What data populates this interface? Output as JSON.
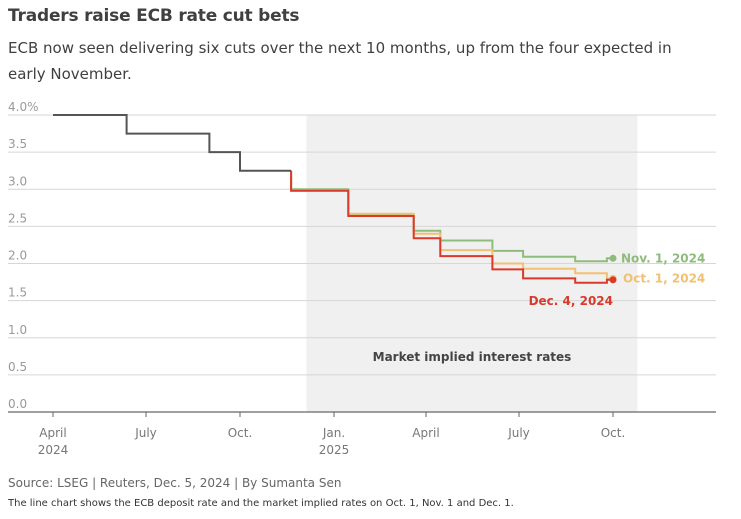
{
  "title": "Traders raise ECB rate cut bets",
  "subtitle": "ECB now seen delivering six cuts over the next 10 months, up from the four expected in early November.",
  "source": "Source: LSEG | Reuters, Dec. 5, 2024 | By Sumanta Sen",
  "note": "The line chart shows the ECB deposit rate and the market implied rates on Oct. 1, Nov. 1 and Dec. 1.",
  "chart_data": {
    "type": "line",
    "title": "Traders raise ECB rate cut bets",
    "xlabel": "",
    "ylabel": "",
    "x_range": [
      "2024-03-01",
      "2025-12-01"
    ],
    "ylim": [
      0,
      4.0
    ],
    "y_ticks": [
      "4.0%",
      "3.5",
      "3.0",
      "2.5",
      "2.0",
      "1.5",
      "1.0",
      "0.5",
      "0.0"
    ],
    "x_ticks": [
      {
        "date": "2024-04-01",
        "label": "April",
        "sublabel": "2024"
      },
      {
        "date": "2024-07-01",
        "label": "July",
        "sublabel": ""
      },
      {
        "date": "2024-10-01",
        "label": "Oct.",
        "sublabel": ""
      },
      {
        "date": "2025-01-01",
        "label": "Jan.",
        "sublabel": "2025"
      },
      {
        "date": "2025-04-01",
        "label": "April",
        "sublabel": ""
      },
      {
        "date": "2025-07-01",
        "label": "July",
        "sublabel": ""
      },
      {
        "date": "2025-10-01",
        "label": "Oct.",
        "sublabel": ""
      }
    ],
    "grid": true,
    "shaded_region": {
      "from": "2024-12-05",
      "to": "2025-10-25",
      "label": "Market implied interest rates"
    },
    "deposit_rate": {
      "color": "#555555",
      "points": [
        [
          "2024-04-01",
          4.0
        ],
        [
          "2024-06-12",
          4.0
        ],
        [
          "2024-06-12",
          3.75
        ],
        [
          "2024-09-01",
          3.75
        ],
        [
          "2024-09-01",
          3.5
        ],
        [
          "2024-10-01",
          3.5
        ],
        [
          "2024-10-01",
          3.25
        ],
        [
          "2024-11-20",
          3.25
        ]
      ]
    },
    "series": [
      {
        "name": "Nov. 1, 2024",
        "color": "#8fbc7d",
        "points": [
          [
            "2024-11-20",
            3.25
          ],
          [
            "2024-11-20",
            3.0
          ],
          [
            "2025-01-15",
            3.0
          ],
          [
            "2025-01-15",
            2.66
          ],
          [
            "2025-03-20",
            2.66
          ],
          [
            "2025-03-20",
            2.44
          ],
          [
            "2025-04-15",
            2.44
          ],
          [
            "2025-04-15",
            2.31
          ],
          [
            "2025-06-05",
            2.31
          ],
          [
            "2025-06-05",
            2.17
          ],
          [
            "2025-07-05",
            2.17
          ],
          [
            "2025-07-05",
            2.09
          ],
          [
            "2025-08-25",
            2.09
          ],
          [
            "2025-08-25",
            2.03
          ],
          [
            "2025-09-25",
            2.03
          ],
          [
            "2025-09-25",
            2.07
          ],
          [
            "2025-10-01",
            2.07
          ]
        ]
      },
      {
        "name": "Oct. 1, 2024",
        "color": "#f2c073",
        "points": [
          [
            "2024-11-20",
            3.25
          ],
          [
            "2024-11-20",
            2.98
          ],
          [
            "2025-01-15",
            2.98
          ],
          [
            "2025-01-15",
            2.67
          ],
          [
            "2025-03-20",
            2.67
          ],
          [
            "2025-03-20",
            2.4
          ],
          [
            "2025-04-15",
            2.4
          ],
          [
            "2025-04-15",
            2.18
          ],
          [
            "2025-06-05",
            2.18
          ],
          [
            "2025-06-05",
            2.0
          ],
          [
            "2025-07-05",
            2.0
          ],
          [
            "2025-07-05",
            1.93
          ],
          [
            "2025-08-25",
            1.93
          ],
          [
            "2025-08-25",
            1.87
          ],
          [
            "2025-09-25",
            1.87
          ],
          [
            "2025-09-25",
            1.8
          ],
          [
            "2025-10-01",
            1.8
          ]
        ]
      },
      {
        "name": "Dec. 4, 2024",
        "color": "#d93a2b",
        "points": [
          [
            "2024-11-20",
            3.25
          ],
          [
            "2024-11-20",
            2.98
          ],
          [
            "2025-01-15",
            2.98
          ],
          [
            "2025-01-15",
            2.64
          ],
          [
            "2025-03-20",
            2.64
          ],
          [
            "2025-03-20",
            2.34
          ],
          [
            "2025-04-15",
            2.34
          ],
          [
            "2025-04-15",
            2.1
          ],
          [
            "2025-06-05",
            2.1
          ],
          [
            "2025-06-05",
            1.92
          ],
          [
            "2025-07-05",
            1.92
          ],
          [
            "2025-07-05",
            1.8
          ],
          [
            "2025-08-25",
            1.8
          ],
          [
            "2025-08-25",
            1.74
          ],
          [
            "2025-09-25",
            1.74
          ],
          [
            "2025-09-25",
            1.78
          ],
          [
            "2025-10-01",
            1.78
          ]
        ]
      }
    ]
  }
}
